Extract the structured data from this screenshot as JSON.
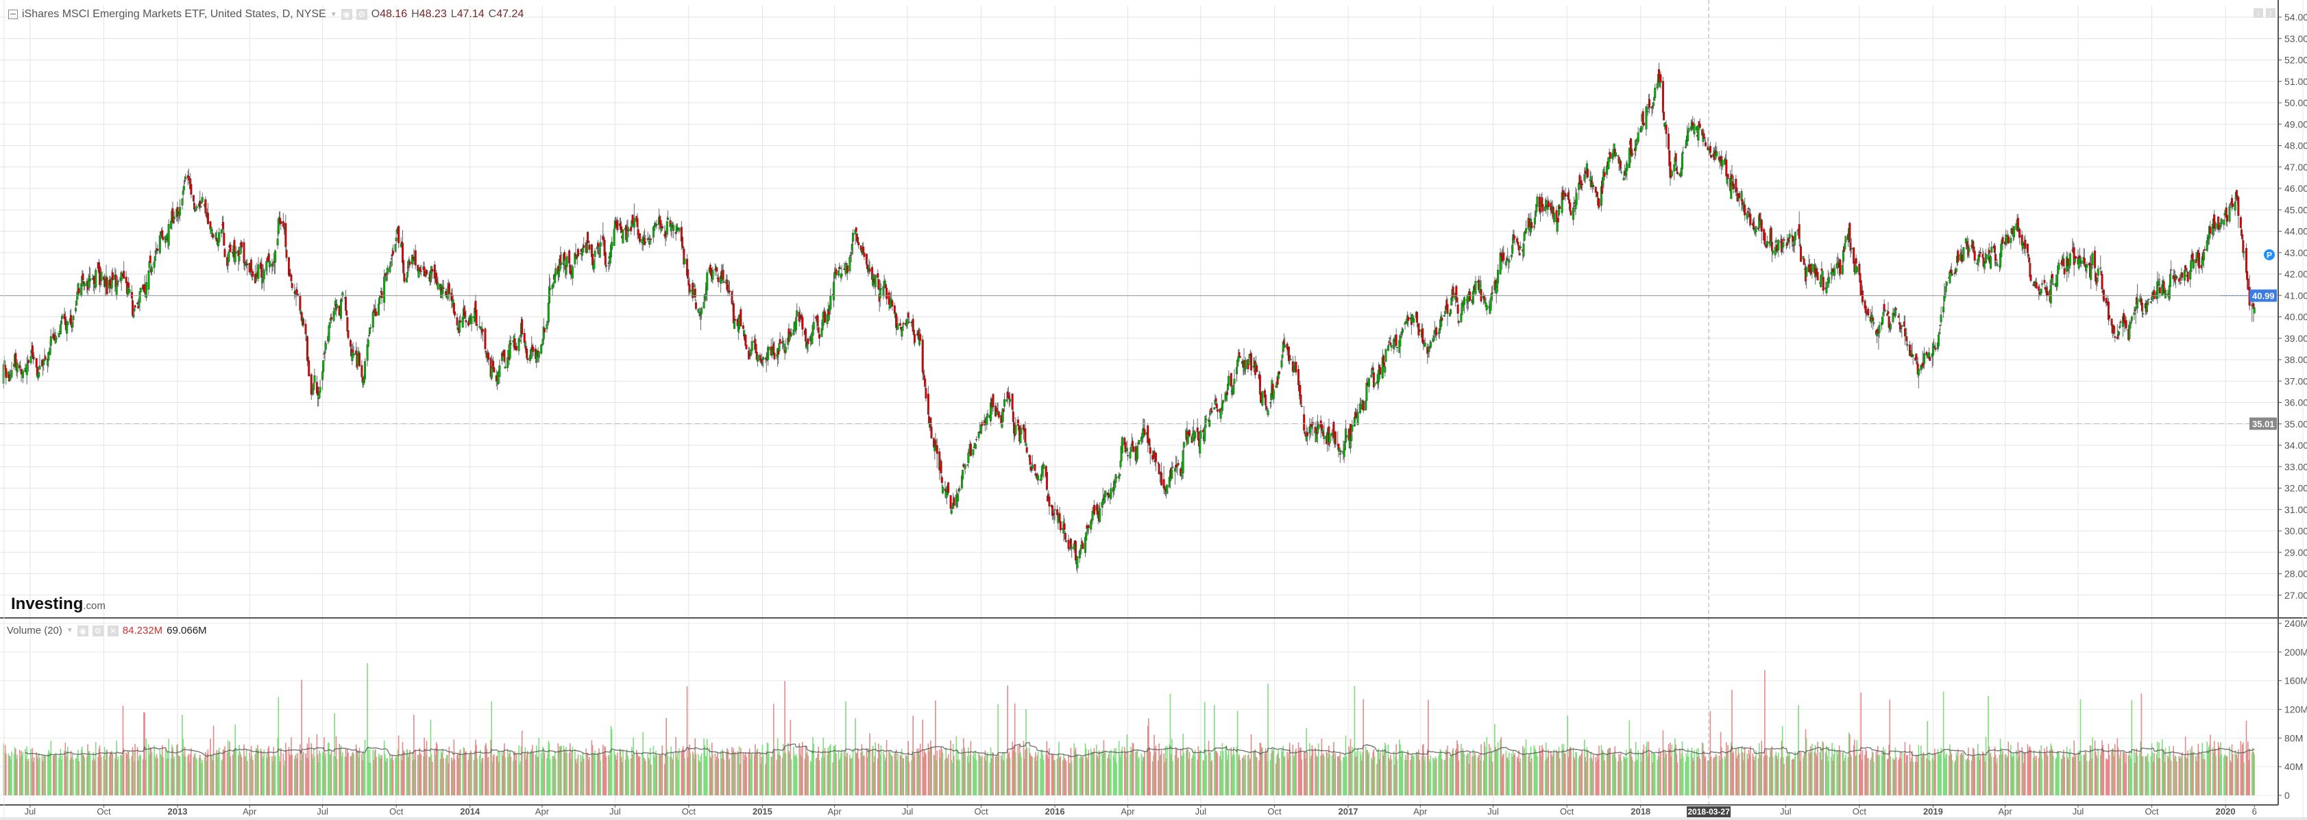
{
  "header": {
    "title": "iShares MSCI Emerging Markets ETF, United States, D, NYSE",
    "open_label": "O",
    "open": "48.16",
    "high_label": "H",
    "high": "48.23",
    "low_label": "L",
    "low": "47.14",
    "close_label": "C",
    "close": "47.24"
  },
  "volume_legend": {
    "title": "Volume (20)",
    "value": "84.232M",
    "ma_value": "69.066M"
  },
  "logo": {
    "main": "Investing",
    "suffix": ".com"
  },
  "colors": {
    "up": "#00b400",
    "down": "#e00000",
    "vol_up": "#7fdc7f",
    "vol_down": "#e38a8a",
    "last_price": "#3d7be0",
    "marker": "#1e8fff"
  },
  "chart_data": {
    "type": "candlestick",
    "title": "iShares MSCI Emerging Markets ETF, United States, D, NYSE",
    "price_axis": {
      "range": [
        26.2,
        54.2
      ],
      "ticks": [
        "54.00",
        "53.00",
        "52.00",
        "51.00",
        "50.00",
        "49.00",
        "48.00",
        "47.00",
        "46.00",
        "45.00",
        "44.00",
        "43.00",
        "42.00",
        "41.00",
        "40.00",
        "39.00",
        "38.00",
        "37.00",
        "36.00",
        "35.00",
        "34.00",
        "33.00",
        "32.00",
        "31.00",
        "30.00",
        "29.00",
        "28.00",
        "27.00"
      ]
    },
    "volume_axis": {
      "range": [
        0,
        240
      ],
      "unit": "M",
      "ticks": [
        "0",
        "40M",
        "80M",
        "120M",
        "160M",
        "200M",
        "240M"
      ]
    },
    "time_axis": [
      {
        "label": "Jul",
        "date": "2012-07-01"
      },
      {
        "label": "Oct",
        "date": "2012-10-01"
      },
      {
        "label": "2013",
        "date": "2013-01-01"
      },
      {
        "label": "Apr",
        "date": "2013-04-01"
      },
      {
        "label": "Jul",
        "date": "2013-07-01"
      },
      {
        "label": "Oct",
        "date": "2013-10-01"
      },
      {
        "label": "2014",
        "date": "2014-01-01"
      },
      {
        "label": "Apr",
        "date": "2014-04-01"
      },
      {
        "label": "Jul",
        "date": "2014-07-01"
      },
      {
        "label": "Oct",
        "date": "2014-10-01"
      },
      {
        "label": "2015",
        "date": "2015-01-01"
      },
      {
        "label": "Apr",
        "date": "2015-04-01"
      },
      {
        "label": "Jul",
        "date": "2015-07-01"
      },
      {
        "label": "Oct",
        "date": "2015-10-01"
      },
      {
        "label": "2016",
        "date": "2016-01-01"
      },
      {
        "label": "Apr",
        "date": "2016-04-01"
      },
      {
        "label": "Jul",
        "date": "2016-07-01"
      },
      {
        "label": "Oct",
        "date": "2016-10-01"
      },
      {
        "label": "2017",
        "date": "2017-01-01"
      },
      {
        "label": "Apr",
        "date": "2017-04-01"
      },
      {
        "label": "Jul",
        "date": "2017-07-01"
      },
      {
        "label": "Oct",
        "date": "2017-10-01"
      },
      {
        "label": "2018",
        "date": "2018-01-01"
      },
      {
        "label": "Jul",
        "date": "2018-07-01"
      },
      {
        "label": "Oct",
        "date": "2018-10-01"
      },
      {
        "label": "2019",
        "date": "2019-01-01"
      },
      {
        "label": "Apr",
        "date": "2019-04-01"
      },
      {
        "label": "Jul",
        "date": "2019-07-01"
      },
      {
        "label": "Oct",
        "date": "2019-10-01"
      },
      {
        "label": "2020",
        "date": "2020-01-01"
      },
      {
        "label": "6",
        "date": "2020-02-06"
      }
    ],
    "crosshair": {
      "date_label": "2018-03-27",
      "date": "2018-03-27"
    },
    "last_price": "40.99",
    "reference_price": "35.01",
    "marker": {
      "label": "P",
      "price": 42.9
    },
    "monthly_close": [
      [
        "2012-05-29",
        37.0
      ],
      [
        "2012-06-15",
        37.8
      ],
      [
        "2012-07-15",
        38.8
      ],
      [
        "2012-08-15",
        39.5
      ],
      [
        "2012-09-15",
        41.8
      ],
      [
        "2012-10-15",
        41.3
      ],
      [
        "2012-11-15",
        40.8
      ],
      [
        "2012-12-15",
        43.2
      ],
      [
        "2013-01-15",
        44.8
      ],
      [
        "2013-02-15",
        43.8
      ],
      [
        "2013-03-15",
        43.0
      ],
      [
        "2013-04-15",
        41.6
      ],
      [
        "2013-05-10",
        43.8
      ],
      [
        "2013-06-24",
        37.0
      ],
      [
        "2013-07-15",
        39.8
      ],
      [
        "2013-08-20",
        37.6
      ],
      [
        "2013-09-20",
        42.5
      ],
      [
        "2013-10-20",
        43.3
      ],
      [
        "2013-11-15",
        41.5
      ],
      [
        "2013-12-15",
        40.5
      ],
      [
        "2014-01-15",
        40.0
      ],
      [
        "2014-02-03",
        37.3
      ],
      [
        "2014-03-15",
        38.3
      ],
      [
        "2014-04-15",
        41.4
      ],
      [
        "2014-05-15",
        42.5
      ],
      [
        "2014-06-15",
        42.7
      ],
      [
        "2014-07-15",
        44.0
      ],
      [
        "2014-08-15",
        44.2
      ],
      [
        "2014-09-05",
        45.3
      ],
      [
        "2014-10-15",
        40.2
      ],
      [
        "2014-11-15",
        41.8
      ],
      [
        "2014-12-15",
        38.5
      ],
      [
        "2015-01-15",
        38.8
      ],
      [
        "2015-02-15",
        40.3
      ],
      [
        "2015-03-15",
        39.5
      ],
      [
        "2015-04-27",
        43.8
      ],
      [
        "2015-05-15",
        42.0
      ],
      [
        "2015-06-15",
        40.2
      ],
      [
        "2015-07-15",
        38.6
      ],
      [
        "2015-08-24",
        31.0
      ],
      [
        "2015-09-15",
        33.0
      ],
      [
        "2015-10-15",
        35.6
      ],
      [
        "2015-11-15",
        33.5
      ],
      [
        "2015-12-15",
        32.0
      ],
      [
        "2016-01-20",
        28.3
      ],
      [
        "2016-02-15",
        30.0
      ],
      [
        "2016-03-15",
        32.5
      ],
      [
        "2016-04-20",
        34.6
      ],
      [
        "2016-05-15",
        32.0
      ],
      [
        "2016-06-15",
        33.8
      ],
      [
        "2016-07-15",
        35.5
      ],
      [
        "2016-08-15",
        37.5
      ],
      [
        "2016-09-15",
        37.0
      ],
      [
        "2016-10-15",
        37.6
      ],
      [
        "2016-11-15",
        34.8
      ],
      [
        "2016-12-20",
        34.5
      ],
      [
        "2017-01-15",
        37.0
      ],
      [
        "2017-02-15",
        38.5
      ],
      [
        "2017-03-15",
        39.6
      ],
      [
        "2017-04-15",
        39.5
      ],
      [
        "2017-05-15",
        40.6
      ],
      [
        "2017-06-15",
        41.5
      ],
      [
        "2017-07-15",
        42.2
      ],
      [
        "2017-08-15",
        43.5
      ],
      [
        "2017-09-15",
        45.2
      ],
      [
        "2017-10-15",
        46.0
      ],
      [
        "2017-11-15",
        46.3
      ],
      [
        "2017-12-15",
        47.0
      ],
      [
        "2018-01-26",
        51.6
      ],
      [
        "2018-02-08",
        46.0
      ],
      [
        "2018-03-10",
        49.0
      ],
      [
        "2018-03-27",
        47.5
      ],
      [
        "2018-04-15",
        47.4
      ],
      [
        "2018-05-15",
        45.5
      ],
      [
        "2018-06-15",
        43.0
      ],
      [
        "2018-07-15",
        43.8
      ],
      [
        "2018-08-15",
        41.5
      ],
      [
        "2018-09-15",
        43.0
      ],
      [
        "2018-10-29",
        38.3
      ],
      [
        "2018-11-15",
        39.7
      ],
      [
        "2018-12-24",
        38.0
      ],
      [
        "2019-01-20",
        41.2
      ],
      [
        "2019-02-20",
        43.0
      ],
      [
        "2019-03-15",
        42.8
      ],
      [
        "2019-04-18",
        44.3
      ],
      [
        "2019-05-25",
        40.0
      ],
      [
        "2019-06-20",
        42.5
      ],
      [
        "2019-07-20",
        43.3
      ],
      [
        "2019-08-15",
        39.0
      ],
      [
        "2019-09-15",
        41.0
      ],
      [
        "2019-10-15",
        41.8
      ],
      [
        "2019-11-15",
        42.3
      ],
      [
        "2019-12-15",
        43.5
      ],
      [
        "2020-01-15",
        45.8
      ],
      [
        "2020-01-24",
        43.5
      ],
      [
        "2020-01-31",
        41.5
      ],
      [
        "2020-02-06",
        40.99
      ]
    ]
  }
}
